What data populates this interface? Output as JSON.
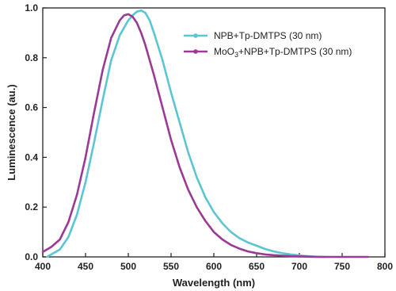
{
  "chart_data": {
    "type": "line",
    "xlabel": "Wavelength (nm)",
    "ylabel": "Luminescence (au.)",
    "xlim": [
      400,
      800
    ],
    "ylim": [
      0.0,
      1.0
    ],
    "xticks": [
      400,
      450,
      500,
      550,
      600,
      650,
      700,
      750,
      800
    ],
    "yticks": [
      0.0,
      0.2,
      0.4,
      0.6,
      0.8,
      1.0
    ],
    "grid": false,
    "legend_position": "top-right",
    "series": [
      {
        "name": "NPB+Tp-DMTPS (30 nm)",
        "color": "#5BC6D1",
        "x": [
          405,
          410,
          420,
          430,
          440,
          450,
          460,
          470,
          480,
          490,
          500,
          505,
          510,
          515,
          520,
          525,
          530,
          540,
          550,
          560,
          570,
          580,
          590,
          600,
          610,
          620,
          630,
          640,
          650,
          660,
          670,
          680,
          690,
          700,
          710,
          720,
          730
        ],
        "y": [
          0.0,
          0.01,
          0.03,
          0.08,
          0.17,
          0.3,
          0.46,
          0.63,
          0.79,
          0.89,
          0.95,
          0.97,
          0.985,
          0.99,
          0.98,
          0.95,
          0.9,
          0.79,
          0.66,
          0.54,
          0.42,
          0.32,
          0.24,
          0.18,
          0.135,
          0.1,
          0.075,
          0.058,
          0.045,
          0.032,
          0.022,
          0.015,
          0.01,
          0.006,
          0.003,
          0.001,
          0.0
        ]
      },
      {
        "name": "MoO3+NPB+Tp-DMTPS (30 nm)",
        "name_parts": [
          "MoO",
          "3",
          "+NPB+Tp-DMTPS (30 nm)"
        ],
        "color": "#9B3A94",
        "x": [
          400,
          410,
          420,
          430,
          440,
          450,
          460,
          470,
          480,
          490,
          495,
          500,
          505,
          510,
          515,
          520,
          530,
          540,
          550,
          560,
          570,
          580,
          590,
          600,
          610,
          620,
          630,
          640,
          650,
          660,
          670,
          680,
          690,
          700,
          710,
          720,
          740,
          760,
          780
        ],
        "y": [
          0.02,
          0.04,
          0.07,
          0.14,
          0.25,
          0.4,
          0.58,
          0.75,
          0.88,
          0.95,
          0.97,
          0.975,
          0.965,
          0.94,
          0.9,
          0.85,
          0.73,
          0.6,
          0.47,
          0.36,
          0.27,
          0.2,
          0.145,
          0.1,
          0.07,
          0.048,
          0.033,
          0.022,
          0.015,
          0.01,
          0.007,
          0.005,
          0.003,
          0.002,
          0.001,
          0.0,
          0.0,
          0.0,
          0.0
        ]
      }
    ]
  }
}
